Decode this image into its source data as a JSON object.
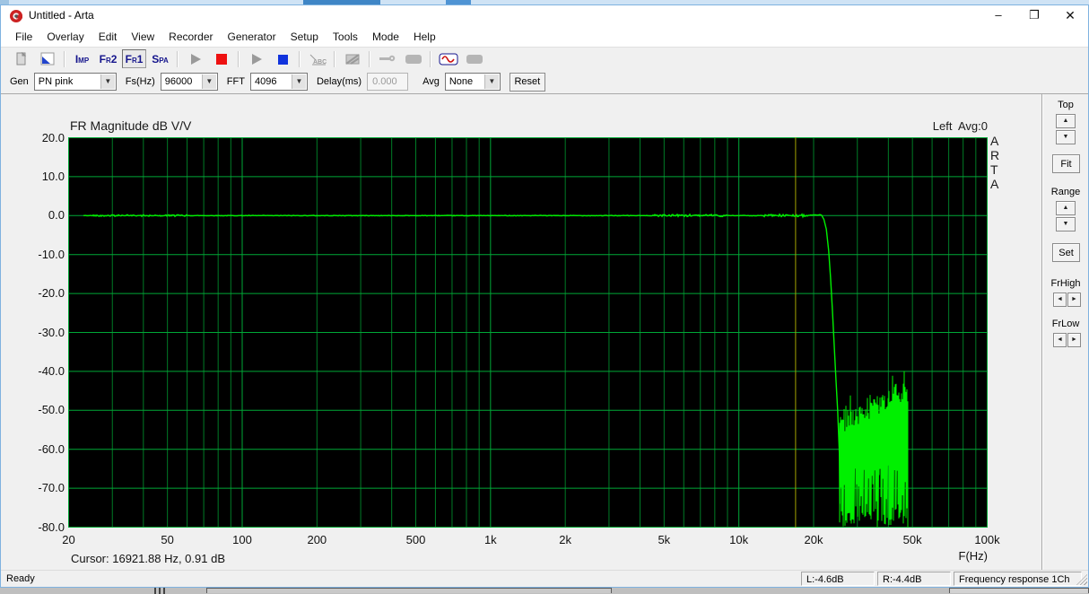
{
  "window": {
    "title": "Untitled - Arta",
    "minimize_glyph": "–",
    "maximize_glyph": "❐",
    "close_glyph": "✕"
  },
  "menu": {
    "items": [
      "File",
      "Overlay",
      "Edit",
      "View",
      "Recorder",
      "Generator",
      "Setup",
      "Tools",
      "Mode",
      "Help"
    ]
  },
  "toolbar": {
    "buttons": [
      {
        "name": "new-file-icon",
        "icon": "doc"
      },
      {
        "name": "overlay-pen-icon",
        "icon": "pen"
      },
      {
        "name": "sep1",
        "icon": "sep"
      },
      {
        "name": "imp-mode-button",
        "icon": "text",
        "label": "Imp"
      },
      {
        "name": "fr2-mode-button",
        "icon": "text",
        "label": "Fr2"
      },
      {
        "name": "fr1-mode-button",
        "icon": "text",
        "label": "Fr1",
        "pressed": true
      },
      {
        "name": "spa-mode-button",
        "icon": "text",
        "label": "Spa"
      },
      {
        "name": "sep2",
        "icon": "sep"
      },
      {
        "name": "play-record-icon",
        "icon": "play"
      },
      {
        "name": "record-stop-icon",
        "icon": "redsq"
      },
      {
        "name": "sep3",
        "icon": "sep"
      },
      {
        "name": "play-generator-icon",
        "icon": "play"
      },
      {
        "name": "stop-generator-icon",
        "icon": "bluesq"
      },
      {
        "name": "sep4",
        "icon": "sep"
      },
      {
        "name": "abc-label-icon",
        "icon": "abc"
      },
      {
        "name": "sep5",
        "icon": "sep"
      },
      {
        "name": "overlay-delete-icon",
        "icon": "nobox"
      },
      {
        "name": "sep6",
        "icon": "sep"
      },
      {
        "name": "calibrate-icon",
        "icon": "key"
      },
      {
        "name": "tool-blank1-icon",
        "icon": "blob"
      },
      {
        "name": "sep7",
        "icon": "sep"
      },
      {
        "name": "signal-generator-icon",
        "icon": "sine"
      },
      {
        "name": "tool-blank2-icon",
        "icon": "blob"
      }
    ]
  },
  "controls": {
    "gen_label": "Gen",
    "gen_value": "PN pink",
    "fs_label": "Fs(Hz)",
    "fs_value": "96000",
    "fft_label": "FFT",
    "fft_value": "4096",
    "delay_label": "Delay(ms)",
    "delay_value": "0.000",
    "avg_label": "Avg",
    "avg_value": "None",
    "reset_label": "Reset",
    "dropdown_glyph": "▼"
  },
  "sidebar": {
    "top_label": "Top",
    "fit_label": "Fit",
    "range_label": "Range",
    "set_label": "Set",
    "frhigh_label": "FrHigh",
    "frlow_label": "FrLow",
    "up_glyph": "▲",
    "down_glyph": "▼",
    "left_glyph": "◄",
    "right_glyph": "►"
  },
  "status": {
    "ready": "Ready",
    "left_db": "L:-4.6dB",
    "right_db": "R:-4.4dB",
    "mode": "Frequency response 1Ch"
  },
  "chart_data": {
    "type": "line",
    "title": "FR Magnitude dB V/V",
    "channel_label": "Left  Avg:0",
    "watermark": "ARTA",
    "xlabel": "F(Hz)",
    "x_scale": "log",
    "xlim": [
      20,
      100000
    ],
    "ylim": [
      -80,
      20
    ],
    "y_ticks": [
      20,
      10,
      0,
      -10,
      -20,
      -30,
      -40,
      -50,
      -60,
      -70,
      -80
    ],
    "y_tick_labels": [
      "20.0",
      "10.0",
      "0.0",
      "-10.0",
      "-20.0",
      "-30.0",
      "-40.0",
      "-50.0",
      "-60.0",
      "-70.0",
      "-80.0"
    ],
    "x_ticks": [
      20,
      50,
      100,
      200,
      500,
      1000,
      2000,
      5000,
      10000,
      20000,
      50000,
      100000
    ],
    "x_tick_labels": [
      "20",
      "50",
      "100",
      "200",
      "500",
      "1k",
      "2k",
      "5k",
      "10k",
      "20k",
      "50k",
      "100k"
    ],
    "x_major_ticks": [
      20,
      100,
      1000,
      10000,
      100000
    ],
    "grid": true,
    "cursor": {
      "freq_hz": 16921.88,
      "level_db": 0.91,
      "label": "Cursor: 16921.88 Hz, 0.91 dB"
    },
    "colors": {
      "plot_bg": "#000000",
      "grid_minor": "#007c26",
      "grid_major": "#00a837",
      "trace": "#00f000",
      "cursor_line": "#a3a300"
    },
    "series": [
      {
        "name": "Left",
        "passband_level_db": 0,
        "passband_range_hz": [
          23,
          21500
        ],
        "fuzz_zones_hz": [
          [
            25,
            60,
            0.35
          ],
          [
            4500,
            9000,
            0.5
          ],
          [
            12500,
            19000,
            0.55
          ]
        ],
        "rolloff_points": [
          [
            21500,
            0
          ],
          [
            22000,
            -1
          ],
          [
            22500,
            -3.5
          ],
          [
            23000,
            -9
          ],
          [
            23400,
            -16
          ],
          [
            23800,
            -24
          ],
          [
            24200,
            -33
          ],
          [
            24600,
            -42
          ],
          [
            25000,
            -50
          ],
          [
            25400,
            -61
          ],
          [
            25500,
            -74
          ]
        ],
        "noise_band_hz": [
          25500,
          48000
        ],
        "noise_top_envelope_db": [
          [
            25500,
            -55
          ],
          [
            28000,
            -52
          ],
          [
            32000,
            -50
          ],
          [
            37000,
            -48
          ],
          [
            42000,
            -45
          ],
          [
            46000,
            -45
          ],
          [
            47900,
            -47
          ]
        ],
        "noise_floor_db": -80
      }
    ]
  }
}
